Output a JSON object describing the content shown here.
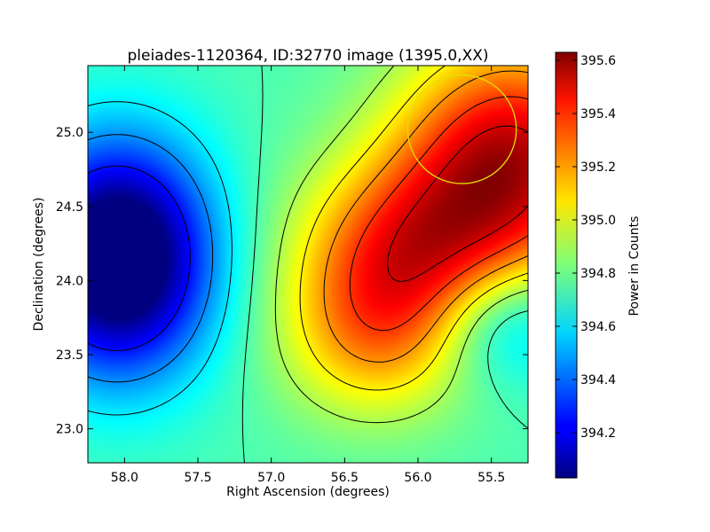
{
  "chart_data": {
    "type": "heatmap",
    "title": "pleiades-1120364, ID:32770 image (1395.0,XX)",
    "xlabel": "Right Ascension (degrees)",
    "ylabel": "Declination (degrees)",
    "xlim": [
      58.25,
      55.25
    ],
    "ylim": [
      22.77,
      25.45
    ],
    "x_ticks": [
      {
        "value": 58.0,
        "label": "58.0"
      },
      {
        "value": 57.5,
        "label": "57.5"
      },
      {
        "value": 57.0,
        "label": "57.0"
      },
      {
        "value": 56.5,
        "label": "56.5"
      },
      {
        "value": 56.0,
        "label": "56.0"
      },
      {
        "value": 55.5,
        "label": "55.5"
      }
    ],
    "y_ticks": [
      {
        "value": 23.0,
        "label": "23.0"
      },
      {
        "value": 23.5,
        "label": "23.5"
      },
      {
        "value": 24.0,
        "label": "24.0"
      },
      {
        "value": 24.5,
        "label": "24.5"
      },
      {
        "value": 25.0,
        "label": "25.0"
      }
    ],
    "colorbar": {
      "label": "Power in Counts",
      "vmin": 394.03,
      "vmax": 395.63,
      "colormap": "jet",
      "ticks": [
        {
          "value": 394.2,
          "label": "394.2"
        },
        {
          "value": 394.4,
          "label": "394.4"
        },
        {
          "value": 394.6,
          "label": "394.6"
        },
        {
          "value": 394.8,
          "label": "394.8"
        },
        {
          "value": 395.0,
          "label": "395.0"
        },
        {
          "value": 395.2,
          "label": "395.2"
        },
        {
          "value": 395.4,
          "label": "395.4"
        },
        {
          "value": 395.6,
          "label": "395.6"
        }
      ]
    },
    "field_peaks": [
      {
        "ra": 58.05,
        "dec": 24.15,
        "amplitude": -0.95,
        "sigma_ra": 0.45,
        "sigma_dec": 0.55
      },
      {
        "ra": 55.35,
        "dec": 24.85,
        "amplitude": 0.75,
        "sigma_ra": 0.55,
        "sigma_dec": 0.55
      },
      {
        "ra": 56.05,
        "dec": 24.2,
        "amplitude": 0.55,
        "sigma_ra": 0.55,
        "sigma_dec": 0.45
      },
      {
        "ra": 56.3,
        "dec": 23.6,
        "amplitude": 0.35,
        "sigma_ra": 0.45,
        "sigma_dec": 0.4
      },
      {
        "ra": 55.4,
        "dec": 23.72,
        "amplitude": -0.3,
        "sigma_ra": 0.35,
        "sigma_dec": 0.3
      }
    ],
    "field_base": 394.75,
    "contour_levels": [
      394.25,
      394.45,
      394.6,
      394.75,
      394.9,
      395.05,
      395.2,
      395.35,
      395.5
    ],
    "circle": {
      "ra": 55.7,
      "dec": 25.02,
      "radius_deg": 0.37,
      "color": "#e0e000"
    },
    "colors": {
      "frame": "#000000",
      "contour": "#000000",
      "circle": "#e0e000"
    }
  }
}
